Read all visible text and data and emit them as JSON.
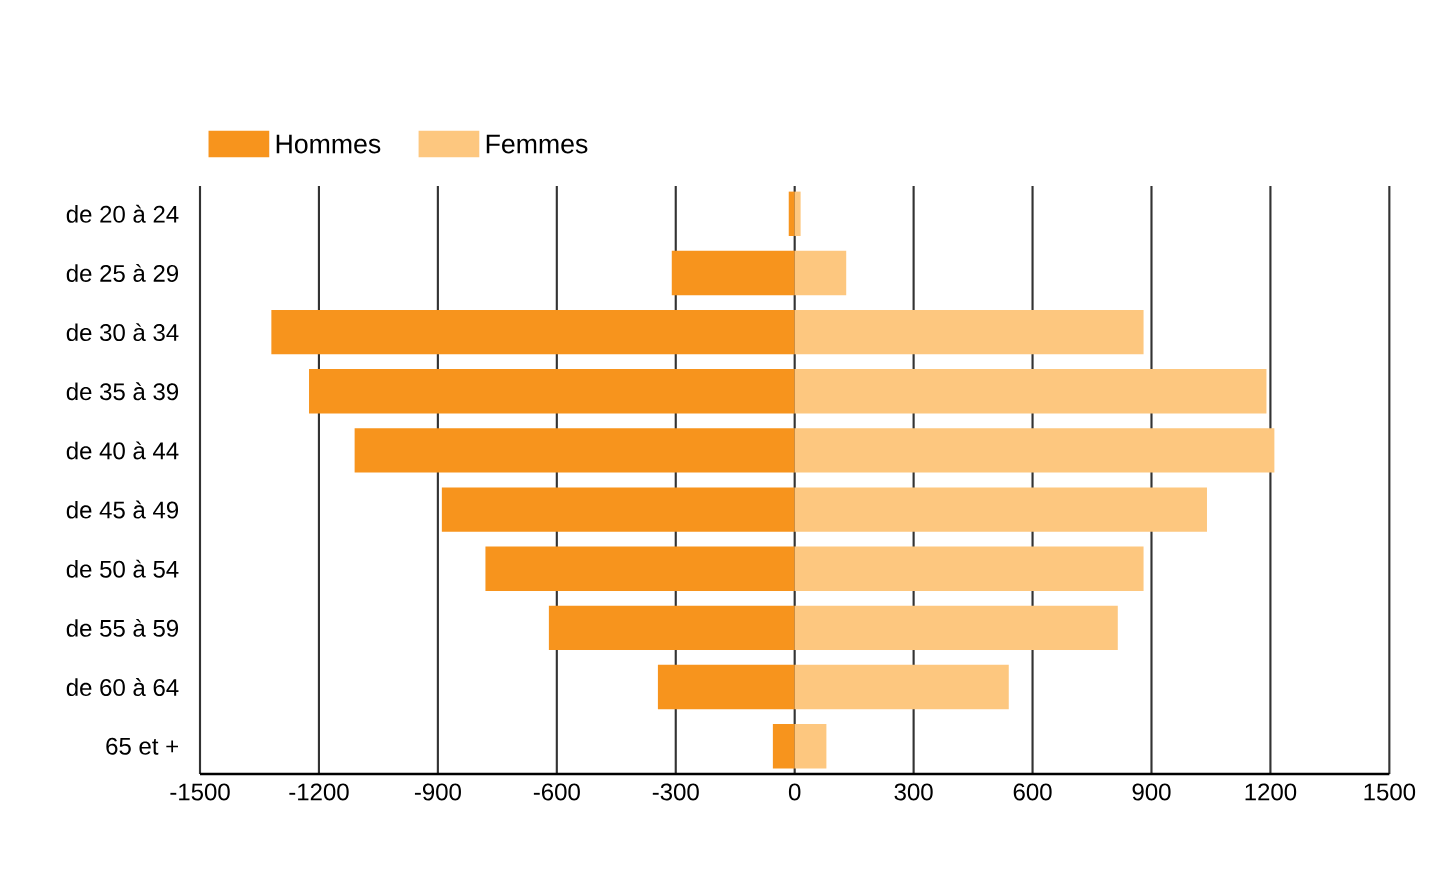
{
  "chart_data": {
    "type": "bar",
    "orientation": "horizontal",
    "categories": [
      "de 20 à 24",
      "de 25 à 29",
      "de 30 à 34",
      "de 35 à 39",
      "de 40 à 44",
      "de 45 à 49",
      "de 50 à 54",
      "de 55 à 59",
      "de 60 à  64",
      "65 et +"
    ],
    "series": [
      {
        "name": "Hommes",
        "color": "#f7941d",
        "values": [
          -15,
          -310,
          -1320,
          -1225,
          -1110,
          -890,
          -780,
          -620,
          -345,
          -55
        ]
      },
      {
        "name": "Femmes",
        "color": "#fdc77f",
        "values": [
          15,
          130,
          880,
          1190,
          1210,
          1040,
          880,
          815,
          540,
          80
        ]
      }
    ],
    "xlim": [
      -1500,
      1500
    ],
    "xticks": [
      -1500,
      -1200,
      -900,
      -600,
      -300,
      0,
      300,
      600,
      900,
      1200,
      1500
    ],
    "grid": "x",
    "legend": "top left",
    "stacked": true
  }
}
